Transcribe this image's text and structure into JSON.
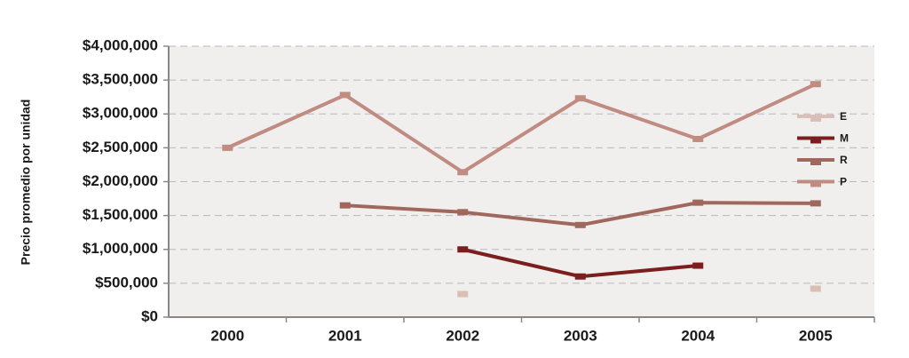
{
  "chart_data": {
    "type": "line",
    "y_label": "Precio promedio por unidad",
    "categories": [
      "2000",
      "2001",
      "2002",
      "2003",
      "2004",
      "2005"
    ],
    "series": [
      {
        "name": "E",
        "color": "#d9bfb5",
        "values": [
          null,
          null,
          340000,
          null,
          null,
          420000
        ]
      },
      {
        "name": "M",
        "color": "#7a1e1e",
        "values": [
          null,
          null,
          1000000,
          600000,
          760000,
          null
        ]
      },
      {
        "name": "R",
        "color": "#a0675d",
        "values": [
          null,
          1650000,
          1550000,
          1360000,
          1690000,
          1680000
        ]
      },
      {
        "name": "P",
        "color": "#c08c82",
        "values": [
          2500000,
          3280000,
          2140000,
          3230000,
          2630000,
          3440000
        ]
      }
    ],
    "ylim": [
      0,
      4000000
    ],
    "yticks": [
      {
        "value": 0,
        "label": "$0"
      },
      {
        "value": 500000,
        "label": "$500,000"
      },
      {
        "value": 1000000,
        "label": "$1,000,000"
      },
      {
        "value": 1500000,
        "label": "$1,500,000"
      },
      {
        "value": 2000000,
        "label": "$2,000,000"
      },
      {
        "value": 2500000,
        "label": "$2,500,000"
      },
      {
        "value": 3000000,
        "label": "$3,000,000"
      },
      {
        "value": 3500000,
        "label": "$3,500,000"
      },
      {
        "value": 4000000,
        "label": "$4,000,000"
      }
    ],
    "grid": true,
    "legend": "right"
  }
}
